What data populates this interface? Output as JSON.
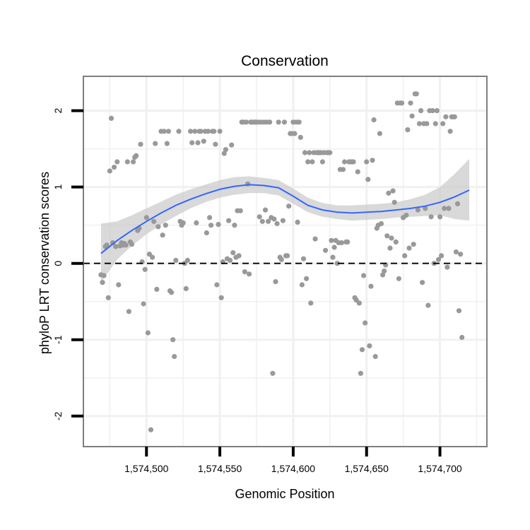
{
  "chart_data": {
    "type": "scatter",
    "title": "Conservation",
    "xlabel": "Genomic Position",
    "ylabel": "phyloP LRT conservation scores",
    "xlim": [
      1574457,
      1574732
    ],
    "ylim": [
      -2.4,
      2.45
    ],
    "x_ticks": [
      1574500,
      1574550,
      1574600,
      1574650,
      1574700
    ],
    "x_tick_labels": [
      "1,574,500",
      "1,574,550",
      "1,574,600",
      "1,574,650",
      "1,574,700"
    ],
    "y_ticks": [
      -2,
      -1,
      0,
      1,
      2
    ],
    "y_tick_labels": [
      "-2",
      "-1",
      "0",
      "1",
      "2"
    ],
    "reference_line": {
      "y": 0,
      "style": "dashed"
    },
    "colors": {
      "points": "#999999",
      "smooth_line": "#3366ff",
      "ribbon": "#cccccc",
      "panel_border": "#7f7f7f",
      "grid": "#f0f0f0"
    },
    "series": [
      {
        "name": "phyloP LRT",
        "type": "scatter",
        "points": [
          [
            1574469,
            -0.15
          ],
          [
            1574470,
            -0.25
          ],
          [
            1574471,
            -0.16
          ],
          [
            1574472,
            0.22
          ],
          [
            1574473,
            0.24
          ],
          [
            1574474,
            -0.45
          ],
          [
            1574475,
            1.21
          ],
          [
            1574476,
            1.9
          ],
          [
            1574477,
            0.27
          ],
          [
            1574478,
            1.26
          ],
          [
            1574479,
            0.22
          ],
          [
            1574480,
            1.33
          ],
          [
            1574481,
            -0.28
          ],
          [
            1574482,
            0.23
          ],
          [
            1574483,
            0.27
          ],
          [
            1574484,
            0.24
          ],
          [
            1574485,
            0.26
          ],
          [
            1574486,
            0.24
          ],
          [
            1574487,
            1.33
          ],
          [
            1574488,
            -0.63
          ],
          [
            1574489,
            0.28
          ],
          [
            1574490,
            0.25
          ],
          [
            1574491,
            1.33
          ],
          [
            1574492,
            1.39
          ],
          [
            1574493,
            1.41
          ],
          [
            1574494,
            0.43
          ],
          [
            1574495,
            0.46
          ],
          [
            1574496,
            1.56
          ],
          [
            1574497,
            0.02
          ],
          [
            1574498,
            -0.53
          ],
          [
            1574499,
            -0.08
          ],
          [
            1574500,
            0.6
          ],
          [
            1574501,
            -0.91
          ],
          [
            1574502,
            0.12
          ],
          [
            1574503,
            -2.18
          ],
          [
            1574504,
            0.08
          ],
          [
            1574505,
            0.55
          ],
          [
            1574506,
            1.57
          ],
          [
            1574507,
            -0.34
          ],
          [
            1574508,
            0.48
          ],
          [
            1574510,
            1.73
          ],
          [
            1574511,
            0.37
          ],
          [
            1574512,
            1.73
          ],
          [
            1574513,
            0.5
          ],
          [
            1574514,
            1.57
          ],
          [
            1574515,
            1.73
          ],
          [
            1574516,
            -0.36
          ],
          [
            1574517,
            -0.38
          ],
          [
            1574518,
            -1.0
          ],
          [
            1574519,
            -1.22
          ],
          [
            1574520,
            0.04
          ],
          [
            1574522,
            1.73
          ],
          [
            1574523,
            0.55
          ],
          [
            1574524,
            0.5
          ],
          [
            1574525,
            0.53
          ],
          [
            1574526,
            0.0
          ],
          [
            1574527,
            -0.33
          ],
          [
            1574528,
            0.04
          ],
          [
            1574530,
            1.73
          ],
          [
            1574531,
            1.58
          ],
          [
            1574533,
            1.73
          ],
          [
            1574534,
            0.53
          ],
          [
            1574535,
            1.58
          ],
          [
            1574536,
            1.73
          ],
          [
            1574537,
            1.73
          ],
          [
            1574539,
            1.6
          ],
          [
            1574540,
            1.73
          ],
          [
            1574541,
            0.4
          ],
          [
            1574542,
            1.73
          ],
          [
            1574543,
            0.6
          ],
          [
            1574544,
            0.5
          ],
          [
            1574545,
            1.73
          ],
          [
            1574546,
            1.73
          ],
          [
            1574547,
            1.56
          ],
          [
            1574548,
            -0.28
          ],
          [
            1574549,
            0.51
          ],
          [
            1574550,
            1.73
          ],
          [
            1574551,
            -0.45
          ],
          [
            1574552,
            0.02
          ],
          [
            1574553,
            1.44
          ],
          [
            1574554,
            1.49
          ],
          [
            1574555,
            0.06
          ],
          [
            1574556,
            0.56
          ],
          [
            1574557,
            0.04
          ],
          [
            1574558,
            1.55
          ],
          [
            1574559,
            0.14
          ],
          [
            1574560,
            0.5
          ],
          [
            1574561,
            0.08
          ],
          [
            1574562,
            0.69
          ],
          [
            1574563,
            0.1
          ],
          [
            1574564,
            0.69
          ],
          [
            1574565,
            1.85
          ],
          [
            1574566,
            1.85
          ],
          [
            1574567,
            -0.11
          ],
          [
            1574568,
            1.85
          ],
          [
            1574569,
            1.04
          ],
          [
            1574570,
            -0.14
          ],
          [
            1574571,
            1.85
          ],
          [
            1574572,
            1.85
          ],
          [
            1574573,
            1.85
          ],
          [
            1574574,
            1.85
          ],
          [
            1574575,
            1.85
          ],
          [
            1574576,
            1.85
          ],
          [
            1574577,
            0.61
          ],
          [
            1574578,
            1.85
          ],
          [
            1574579,
            0.55
          ],
          [
            1574580,
            1.85
          ],
          [
            1574581,
            0.7
          ],
          [
            1574582,
            1.85
          ],
          [
            1574583,
            0.55
          ],
          [
            1574584,
            1.85
          ],
          [
            1574585,
            0.6
          ],
          [
            1574586,
            -1.44
          ],
          [
            1574587,
            0.58
          ],
          [
            1574588,
            -0.24
          ],
          [
            1574589,
            0.52
          ],
          [
            1574590,
            1.85
          ],
          [
            1574591,
            0.08
          ],
          [
            1574592,
            0.05
          ],
          [
            1574593,
            0.56
          ],
          [
            1574594,
            1.85
          ],
          [
            1574595,
            0.1
          ],
          [
            1574596,
            0.1
          ],
          [
            1574597,
            0.75
          ],
          [
            1574598,
            1.7
          ],
          [
            1574599,
            1.7
          ],
          [
            1574600,
            1.85
          ],
          [
            1574601,
            1.7
          ],
          [
            1574602,
            1.85
          ],
          [
            1574603,
            0.54
          ],
          [
            1574604,
            1.85
          ],
          [
            1574605,
            1.65
          ],
          [
            1574606,
            -0.28
          ],
          [
            1574607,
            0.06
          ],
          [
            1574608,
            1.45
          ],
          [
            1574609,
            -0.2
          ],
          [
            1574610,
            1.33
          ],
          [
            1574611,
            1.45
          ],
          [
            1574612,
            -0.52
          ],
          [
            1574613,
            1.33
          ],
          [
            1574614,
            1.45
          ],
          [
            1574615,
            0.32
          ],
          [
            1574616,
            1.45
          ],
          [
            1574617,
            1.45
          ],
          [
            1574618,
            1.45
          ],
          [
            1574619,
            1.45
          ],
          [
            1574620,
            1.33
          ],
          [
            1574621,
            1.45
          ],
          [
            1574622,
            0.17
          ],
          [
            1574623,
            1.45
          ],
          [
            1574624,
            1.45
          ],
          [
            1574625,
            1.45
          ],
          [
            1574626,
            0.3
          ],
          [
            1574627,
            0.08
          ],
          [
            1574628,
            0.21
          ],
          [
            1574629,
            0.3
          ],
          [
            1574630,
            0.0
          ],
          [
            1574631,
            0.27
          ],
          [
            1574632,
            1.23
          ],
          [
            1574633,
            0.27
          ],
          [
            1574634,
            1.23
          ],
          [
            1574635,
            1.33
          ],
          [
            1574636,
            0.28
          ],
          [
            1574637,
            0.28
          ],
          [
            1574638,
            1.33
          ],
          [
            1574639,
            1.33
          ],
          [
            1574640,
            1.33
          ],
          [
            1574641,
            1.33
          ],
          [
            1574642,
            -0.45
          ],
          [
            1574643,
            -0.48
          ],
          [
            1574644,
            1.2
          ],
          [
            1574645,
            -0.52
          ],
          [
            1574646,
            -1.44
          ],
          [
            1574647,
            -1.13
          ],
          [
            1574648,
            -0.16
          ],
          [
            1574649,
            -0.78
          ],
          [
            1574650,
            1.33
          ],
          [
            1574651,
            1.1
          ],
          [
            1574652,
            -1.08
          ],
          [
            1574653,
            -0.3
          ],
          [
            1574654,
            1.35
          ],
          [
            1574655,
            1.88
          ],
          [
            1574656,
            -1.22
          ],
          [
            1574657,
            0.46
          ],
          [
            1574658,
            0.5
          ],
          [
            1574659,
            1.7
          ],
          [
            1574660,
            0.52
          ],
          [
            1574661,
            -0.15
          ],
          [
            1574662,
            -0.1
          ],
          [
            1574663,
            -0.02
          ],
          [
            1574664,
            0.36
          ],
          [
            1574665,
            0.92
          ],
          [
            1574666,
            0.2
          ],
          [
            1574667,
            0.33
          ],
          [
            1574668,
            0.95
          ],
          [
            1574669,
            0.8
          ],
          [
            1574670,
            0.28
          ],
          [
            1574671,
            2.1
          ],
          [
            1574672,
            -0.2
          ],
          [
            1574673,
            2.1
          ],
          [
            1574674,
            2.1
          ],
          [
            1574675,
            0.6
          ],
          [
            1574676,
            0.1
          ],
          [
            1574677,
            0.63
          ],
          [
            1574678,
            1.75
          ],
          [
            1574679,
            0.2
          ],
          [
            1574680,
            2.1
          ],
          [
            1574681,
            1.93
          ],
          [
            1574682,
            0.25
          ],
          [
            1574683,
            2.22
          ],
          [
            1574684,
            2.22
          ],
          [
            1574685,
            0.7
          ],
          [
            1574686,
            1.83
          ],
          [
            1574687,
            2.0
          ],
          [
            1574688,
            -0.25
          ],
          [
            1574689,
            1.83
          ],
          [
            1574690,
            0.72
          ],
          [
            1574691,
            1.83
          ],
          [
            1574692,
            -0.55
          ],
          [
            1574693,
            2.0
          ],
          [
            1574694,
            0.61
          ],
          [
            1574695,
            2.0
          ],
          [
            1574696,
            0.0
          ],
          [
            1574697,
            1.83
          ],
          [
            1574698,
            2.0
          ],
          [
            1574699,
            0.05
          ],
          [
            1574700,
            0.61
          ],
          [
            1574701,
            0.1
          ],
          [
            1574702,
            1.83
          ],
          [
            1574703,
            0.72
          ],
          [
            1574704,
            1.92
          ],
          [
            1574705,
            -0.05
          ],
          [
            1574706,
            0.72
          ],
          [
            1574707,
            1.73
          ],
          [
            1574708,
            1.92
          ],
          [
            1574709,
            1.92
          ],
          [
            1574710,
            1.92
          ],
          [
            1574711,
            0.15
          ],
          [
            1574712,
            0.78
          ],
          [
            1574713,
            -0.62
          ],
          [
            1574714,
            0.12
          ],
          [
            1574715,
            -0.97
          ]
        ]
      },
      {
        "name": "LOESS fit",
        "type": "line",
        "x": [
          1574469,
          1574480,
          1574490,
          1574500,
          1574510,
          1574520,
          1574530,
          1574540,
          1574550,
          1574560,
          1574570,
          1574580,
          1574590,
          1574600,
          1574610,
          1574620,
          1574630,
          1574640,
          1574650,
          1574660,
          1574670,
          1574680,
          1574690,
          1574700,
          1574710,
          1574720
        ],
        "y": [
          0.13,
          0.3,
          0.43,
          0.55,
          0.66,
          0.76,
          0.84,
          0.91,
          0.97,
          1.01,
          1.03,
          1.02,
          0.99,
          0.88,
          0.76,
          0.7,
          0.67,
          0.66,
          0.67,
          0.68,
          0.7,
          0.72,
          0.75,
          0.8,
          0.87,
          0.96
        ],
        "ci_low": [
          -0.25,
          0.05,
          0.23,
          0.38,
          0.51,
          0.62,
          0.72,
          0.8,
          0.86,
          0.9,
          0.92,
          0.92,
          0.89,
          0.78,
          0.67,
          0.61,
          0.58,
          0.56,
          0.57,
          0.58,
          0.6,
          0.61,
          0.62,
          0.63,
          0.58,
          0.56
        ],
        "ci_high": [
          0.52,
          0.55,
          0.63,
          0.72,
          0.81,
          0.9,
          0.97,
          1.03,
          1.09,
          1.13,
          1.14,
          1.12,
          1.09,
          0.98,
          0.86,
          0.79,
          0.76,
          0.76,
          0.77,
          0.78,
          0.8,
          0.84,
          0.9,
          1.0,
          1.17,
          1.37
        ]
      }
    ]
  }
}
